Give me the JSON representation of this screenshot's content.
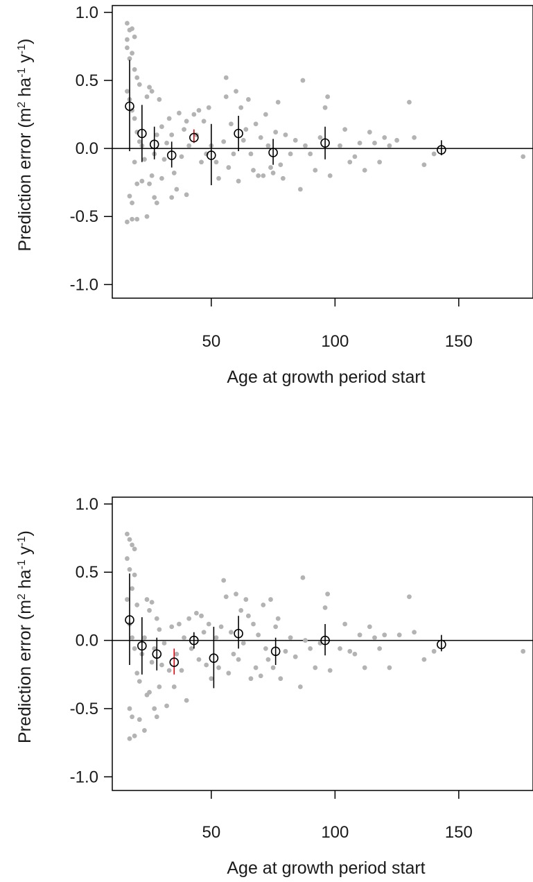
{
  "colors": {
    "points": "#b3b3b3",
    "means": "#000000",
    "highlight": "#e8000b",
    "axes": "#000000"
  },
  "chart_data": [
    {
      "type": "scatter",
      "xlabel": "Age at growth period start",
      "ylabel": "Prediction error (m2 ha-1 y-1)",
      "ylabel_parts": [
        "Prediction error (m",
        "2",
        " ha",
        "-1",
        " y",
        "-1",
        ")"
      ],
      "xlim": [
        10,
        180
      ],
      "ylim": [
        -1.1,
        1.05
      ],
      "xticks": [
        50,
        100,
        150
      ],
      "yticks": [
        -1.0,
        -0.5,
        0.0,
        0.5,
        1.0
      ],
      "xtick_labels": [
        "50",
        "100",
        "150"
      ],
      "ytick_labels": [
        "-1.0",
        "-0.5",
        "0.0",
        "0.5",
        "1.0"
      ],
      "reference_line": 0,
      "points": [
        [
          16,
          0.92
        ],
        [
          17,
          0.87
        ],
        [
          16,
          0.8
        ],
        [
          18,
          0.88
        ],
        [
          19,
          0.82
        ],
        [
          16,
          0.74
        ],
        [
          17,
          0.66
        ],
        [
          18,
          0.7
        ],
        [
          19,
          0.58
        ],
        [
          20,
          0.52
        ],
        [
          21,
          0.47
        ],
        [
          16,
          0.42
        ],
        [
          17,
          0.36
        ],
        [
          18,
          0.28
        ],
        [
          19,
          0.22
        ],
        [
          20,
          0.12
        ],
        [
          21,
          0.05
        ],
        [
          22,
          0.02
        ],
        [
          19,
          -0.1
        ],
        [
          20,
          -0.26
        ],
        [
          17,
          -0.35
        ],
        [
          18,
          -0.4
        ],
        [
          16,
          -0.54
        ],
        [
          18,
          -0.52
        ],
        [
          20,
          -0.52
        ],
        [
          22,
          -0.24
        ],
        [
          23,
          -0.08
        ],
        [
          24,
          0.38
        ],
        [
          25,
          0.45
        ],
        [
          26,
          0.42
        ],
        [
          24,
          -0.5
        ],
        [
          25,
          -0.26
        ],
        [
          26,
          -0.2
        ],
        [
          27,
          -0.04
        ],
        [
          28,
          0.1
        ],
        [
          29,
          0.36
        ],
        [
          30,
          0.16
        ],
        [
          27,
          -0.36
        ],
        [
          28,
          -0.4
        ],
        [
          30,
          -0.22
        ],
        [
          31,
          -0.08
        ],
        [
          32,
          0.04
        ],
        [
          33,
          0.22
        ],
        [
          34,
          0.1
        ],
        [
          35,
          -0.18
        ],
        [
          36,
          -0.3
        ],
        [
          34,
          -0.36
        ],
        [
          37,
          0.26
        ],
        [
          38,
          -0.06
        ],
        [
          39,
          0.14
        ],
        [
          40,
          -0.34
        ],
        [
          40,
          0.2
        ],
        [
          41,
          0.02
        ],
        [
          43,
          0.25
        ],
        [
          44,
          0.1
        ],
        [
          45,
          0.28
        ],
        [
          46,
          -0.1
        ],
        [
          47,
          0.2
        ],
        [
          48,
          -0.04
        ],
        [
          49,
          0.3
        ],
        [
          50,
          0.02
        ],
        [
          52,
          -0.1
        ],
        [
          53,
          -0.22
        ],
        [
          55,
          0.05
        ],
        [
          56,
          0.38
        ],
        [
          56,
          0.52
        ],
        [
          57,
          -0.14
        ],
        [
          58,
          0.18
        ],
        [
          59,
          -0.04
        ],
        [
          60,
          0.42
        ],
        [
          61,
          -0.24
        ],
        [
          62,
          0.3
        ],
        [
          63,
          0.06
        ],
        [
          64,
          0.14
        ],
        [
          65,
          0.36
        ],
        [
          66,
          -0.04
        ],
        [
          67,
          -0.16
        ],
        [
          68,
          0.18
        ],
        [
          69,
          -0.2
        ],
        [
          70,
          0.08
        ],
        [
          71,
          -0.2
        ],
        [
          72,
          0.25
        ],
        [
          73,
          0.02
        ],
        [
          74,
          -0.14
        ],
        [
          75,
          -0.18
        ],
        [
          76,
          0.12
        ],
        [
          77,
          0.34
        ],
        [
          78,
          -0.12
        ],
        [
          79,
          -0.22
        ],
        [
          80,
          0.1
        ],
        [
          82,
          -0.04
        ],
        [
          84,
          0.06
        ],
        [
          86,
          -0.3
        ],
        [
          87,
          0.5
        ],
        [
          88,
          0.02
        ],
        [
          90,
          -0.04
        ],
        [
          92,
          -0.16
        ],
        [
          94,
          0.08
        ],
        [
          96,
          0.3
        ],
        [
          97,
          0.38
        ],
        [
          98,
          -0.2
        ],
        [
          102,
          0.02
        ],
        [
          104,
          0.14
        ],
        [
          106,
          -0.1
        ],
        [
          108,
          -0.06
        ],
        [
          110,
          0.04
        ],
        [
          112,
          -0.16
        ],
        [
          114,
          0.12
        ],
        [
          116,
          0.04
        ],
        [
          118,
          -0.1
        ],
        [
          120,
          0.08
        ],
        [
          122,
          0.02
        ],
        [
          125,
          0.06
        ],
        [
          130,
          0.34
        ],
        [
          132,
          0.08
        ],
        [
          136,
          -0.12
        ],
        [
          140,
          -0.04
        ],
        [
          176,
          -0.06
        ]
      ],
      "means": [
        {
          "x": 17,
          "y": 0.31,
          "lo": -0.02,
          "hi": 0.65
        },
        {
          "x": 22,
          "y": 0.11,
          "lo": -0.1,
          "hi": 0.32
        },
        {
          "x": 27,
          "y": 0.03,
          "lo": -0.08,
          "hi": 0.16
        },
        {
          "x": 34,
          "y": -0.05,
          "lo": -0.14,
          "hi": 0.05
        },
        {
          "x": 43,
          "y": 0.08,
          "lo": 0.04,
          "hi": 0.14,
          "highlight": true
        },
        {
          "x": 50,
          "y": -0.05,
          "lo": -0.27,
          "hi": 0.18
        },
        {
          "x": 61,
          "y": 0.11,
          "lo": -0.02,
          "hi": 0.24
        },
        {
          "x": 75,
          "y": -0.03,
          "lo": -0.12,
          "hi": 0.07
        },
        {
          "x": 96,
          "y": 0.04,
          "lo": -0.08,
          "hi": 0.16
        },
        {
          "x": 143,
          "y": -0.01,
          "lo": -0.05,
          "hi": 0.06
        }
      ]
    },
    {
      "type": "scatter",
      "xlabel": "Age at growth period start",
      "ylabel": "Prediction error (m2 ha-1 y-1)",
      "ylabel_parts": [
        "Prediction error (m",
        "2",
        " ha",
        "-1",
        " y",
        "-1",
        ")"
      ],
      "xlim": [
        10,
        180
      ],
      "ylim": [
        -1.1,
        1.05
      ],
      "xticks": [
        50,
        100,
        150
      ],
      "yticks": [
        -1.0,
        -0.5,
        0.0,
        0.5,
        1.0
      ],
      "xtick_labels": [
        "50",
        "100",
        "150"
      ],
      "ytick_labels": [
        "-1.0",
        "-0.5",
        "0.0",
        "0.5",
        "1.0"
      ],
      "reference_line": 0,
      "points": [
        [
          16,
          0.78
        ],
        [
          17,
          0.74
        ],
        [
          18,
          0.7
        ],
        [
          19,
          0.67
        ],
        [
          16,
          0.6
        ],
        [
          17,
          0.52
        ],
        [
          19,
          0.48
        ],
        [
          18,
          0.38
        ],
        [
          16,
          0.3
        ],
        [
          20,
          0.26
        ],
        [
          17,
          0.12
        ],
        [
          18,
          0.02
        ],
        [
          19,
          -0.06
        ],
        [
          20,
          -0.24
        ],
        [
          17,
          -0.5
        ],
        [
          18,
          -0.56
        ],
        [
          17,
          -0.72
        ],
        [
          19,
          -0.7
        ],
        [
          21,
          -0.58
        ],
        [
          21,
          -0.3
        ],
        [
          22,
          -0.1
        ],
        [
          23,
          0.02
        ],
        [
          24,
          0.3
        ],
        [
          25,
          0.22
        ],
        [
          26,
          0.28
        ],
        [
          23,
          -0.66
        ],
        [
          24,
          -0.4
        ],
        [
          25,
          -0.38
        ],
        [
          26,
          -0.16
        ],
        [
          27,
          -0.06
        ],
        [
          28,
          0.16
        ],
        [
          29,
          0.08
        ],
        [
          27,
          -0.5
        ],
        [
          28,
          -0.56
        ],
        [
          29,
          -0.34
        ],
        [
          30,
          -0.18
        ],
        [
          31,
          -0.02
        ],
        [
          32,
          -0.48
        ],
        [
          33,
          -0.22
        ],
        [
          34,
          0.1
        ],
        [
          35,
          -0.34
        ],
        [
          36,
          -0.1
        ],
        [
          37,
          0.12
        ],
        [
          38,
          -0.22
        ],
        [
          39,
          0.02
        ],
        [
          40,
          -0.44
        ],
        [
          41,
          0.16
        ],
        [
          42,
          -0.06
        ],
        [
          44,
          0.2
        ],
        [
          45,
          -0.14
        ],
        [
          46,
          0.18
        ],
        [
          47,
          0.06
        ],
        [
          48,
          -0.18
        ],
        [
          49,
          0.12
        ],
        [
          50,
          -0.28
        ],
        [
          52,
          0.02
        ],
        [
          53,
          -0.2
        ],
        [
          54,
          0.1
        ],
        [
          55,
          0.44
        ],
        [
          56,
          0.32
        ],
        [
          57,
          -0.24
        ],
        [
          58,
          0.06
        ],
        [
          59,
          -0.1
        ],
        [
          60,
          0.34
        ],
        [
          61,
          -0.14
        ],
        [
          62,
          0.22
        ],
        [
          63,
          -0.02
        ],
        [
          64,
          0.3
        ],
        [
          65,
          0.18
        ],
        [
          66,
          -0.28
        ],
        [
          67,
          0.12
        ],
        [
          68,
          -0.2
        ],
        [
          69,
          0.04
        ],
        [
          70,
          -0.26
        ],
        [
          71,
          0.26
        ],
        [
          72,
          -0.06
        ],
        [
          73,
          -0.14
        ],
        [
          74,
          0.3
        ],
        [
          75,
          -0.2
        ],
        [
          76,
          0.1
        ],
        [
          77,
          0.16
        ],
        [
          78,
          -0.28
        ],
        [
          80,
          -0.08
        ],
        [
          82,
          0.02
        ],
        [
          84,
          -0.12
        ],
        [
          86,
          -0.34
        ],
        [
          87,
          0.46
        ],
        [
          88,
          0.0
        ],
        [
          90,
          -0.06
        ],
        [
          92,
          -0.2
        ],
        [
          94,
          -0.02
        ],
        [
          96,
          0.24
        ],
        [
          97,
          0.34
        ],
        [
          98,
          -0.22
        ],
        [
          102,
          -0.06
        ],
        [
          104,
          0.12
        ],
        [
          106,
          -0.08
        ],
        [
          108,
          -0.1
        ],
        [
          110,
          0.04
        ],
        [
          112,
          -0.2
        ],
        [
          114,
          0.1
        ],
        [
          116,
          0.02
        ],
        [
          118,
          -0.06
        ],
        [
          120,
          0.04
        ],
        [
          122,
          -0.2
        ],
        [
          126,
          0.04
        ],
        [
          130,
          0.32
        ],
        [
          132,
          0.06
        ],
        [
          136,
          -0.14
        ],
        [
          140,
          -0.08
        ],
        [
          176,
          -0.08
        ]
      ],
      "means": [
        {
          "x": 17,
          "y": 0.15,
          "lo": -0.18,
          "hi": 0.49
        },
        {
          "x": 22,
          "y": -0.04,
          "lo": -0.25,
          "hi": 0.17
        },
        {
          "x": 28,
          "y": -0.1,
          "lo": -0.22,
          "hi": 0.02
        },
        {
          "x": 35,
          "y": -0.16,
          "lo": -0.25,
          "hi": -0.06,
          "highlight": true
        },
        {
          "x": 43,
          "y": 0.0,
          "lo": -0.06,
          "hi": 0.06
        },
        {
          "x": 51,
          "y": -0.13,
          "lo": -0.35,
          "hi": 0.1
        },
        {
          "x": 61,
          "y": 0.05,
          "lo": -0.06,
          "hi": 0.18
        },
        {
          "x": 76,
          "y": -0.08,
          "lo": -0.18,
          "hi": 0.02
        },
        {
          "x": 96,
          "y": 0.0,
          "lo": -0.11,
          "hi": 0.12
        },
        {
          "x": 143,
          "y": -0.03,
          "lo": -0.08,
          "hi": 0.04
        }
      ]
    }
  ]
}
